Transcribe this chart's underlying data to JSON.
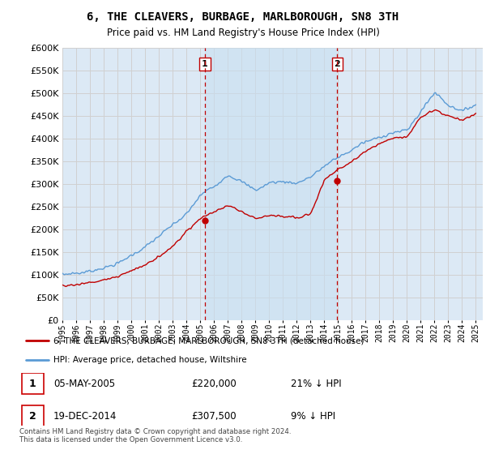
{
  "title": "6, THE CLEAVERS, BURBAGE, MARLBOROUGH, SN8 3TH",
  "subtitle": "Price paid vs. HM Land Registry's House Price Index (HPI)",
  "legend_label1": "6, THE CLEAVERS, BURBAGE, MARLBOROUGH, SN8 3TH (detached house)",
  "legend_label2": "HPI: Average price, detached house, Wiltshire",
  "annotation1_label": "1",
  "annotation1_date": "05-MAY-2005",
  "annotation1_price": "£220,000",
  "annotation1_pct": "21% ↓ HPI",
  "annotation2_label": "2",
  "annotation2_date": "19-DEC-2014",
  "annotation2_price": "£307,500",
  "annotation2_pct": "9% ↓ HPI",
  "footer": "Contains HM Land Registry data © Crown copyright and database right 2024.\nThis data is licensed under the Open Government Licence v3.0.",
  "sale1_year": 2005.35,
  "sale1_price": 220000,
  "sale2_year": 2014.96,
  "sale2_price": 307500,
  "ylim": [
    0,
    600000
  ],
  "xlim": [
    1995.0,
    2025.5
  ],
  "background_color": "#dce9f5",
  "shade_color": "#c8dff0",
  "line_color_hpi": "#5b9bd5",
  "line_color_sale": "#c00000",
  "vline_color": "#c00000",
  "grid_color": "#d0d0d0"
}
